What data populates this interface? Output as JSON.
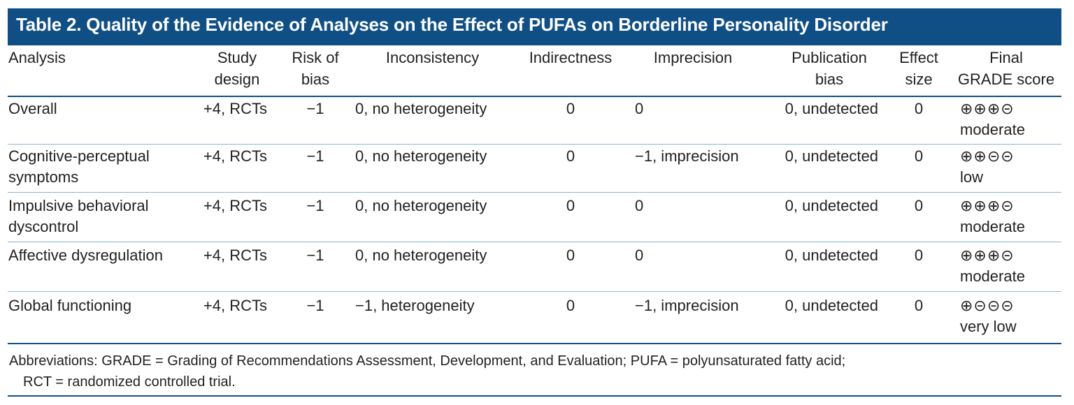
{
  "title": "Table 2. Quality of the Evidence of Analyses on the Effect of PUFAs on Borderline Personality Disorder",
  "headers": {
    "analysis": [
      "",
      "Analysis"
    ],
    "design": [
      "Study",
      "design"
    ],
    "risk": [
      "Risk of",
      "bias"
    ],
    "inconsistency": [
      "",
      "Inconsistency"
    ],
    "indirectness": [
      "",
      "Indirectness"
    ],
    "imprecision": [
      "",
      "Imprecision"
    ],
    "publication": [
      "Publication",
      "bias"
    ],
    "effect": [
      "Effect",
      "size"
    ],
    "grade": [
      "Final",
      "GRADE score"
    ]
  },
  "rows": [
    {
      "analysis": [
        "Overall",
        ""
      ],
      "design": "+4, RCTs",
      "risk": "−1",
      "inconsistency": "0, no heterogeneity",
      "indirectness": "0",
      "imprecision": "0",
      "publication": "0, undetected",
      "effect": "0",
      "grade_symbols": "⊕⊕⊕⊝",
      "grade_word": "moderate"
    },
    {
      "analysis": [
        "Cognitive-perceptual",
        "symptoms"
      ],
      "design": "+4, RCTs",
      "risk": "−1",
      "inconsistency": "0, no heterogeneity",
      "indirectness": "0",
      "imprecision": "−1, imprecision",
      "publication": "0, undetected",
      "effect": "0",
      "grade_symbols": "⊕⊕⊝⊝",
      "grade_word": "low"
    },
    {
      "analysis": [
        "Impulsive behavioral",
        "dyscontrol"
      ],
      "design": "+4, RCTs",
      "risk": "−1",
      "inconsistency": "0, no heterogeneity",
      "indirectness": "0",
      "imprecision": "0",
      "publication": "0, undetected",
      "effect": "0",
      "grade_symbols": "⊕⊕⊕⊝",
      "grade_word": "moderate"
    },
    {
      "analysis": [
        "Affective dysregulation",
        ""
      ],
      "design": "+4, RCTs",
      "risk": "−1",
      "inconsistency": "0, no heterogeneity",
      "indirectness": "0",
      "imprecision": "0",
      "publication": "0, undetected",
      "effect": "0",
      "grade_symbols": "⊕⊕⊕⊝",
      "grade_word": "moderate"
    },
    {
      "analysis": [
        "Global functioning",
        ""
      ],
      "design": "+4, RCTs",
      "risk": "−1",
      "inconsistency": "−1, heterogeneity",
      "indirectness": "0",
      "imprecision": "−1, imprecision",
      "publication": "0, undetected",
      "effect": "0",
      "grade_symbols": "⊕⊝⊝⊝",
      "grade_word": "very low"
    }
  ],
  "footnote": {
    "line1": "Abbreviations: GRADE = Grading of Recommendations Assessment, Development, and Evaluation; PUFA = polyunsaturated fatty acid;",
    "line2": "RCT = randomized controlled trial."
  },
  "colors": {
    "header_bar": "#0f4f86",
    "row_rule": "#8fb2d3"
  }
}
